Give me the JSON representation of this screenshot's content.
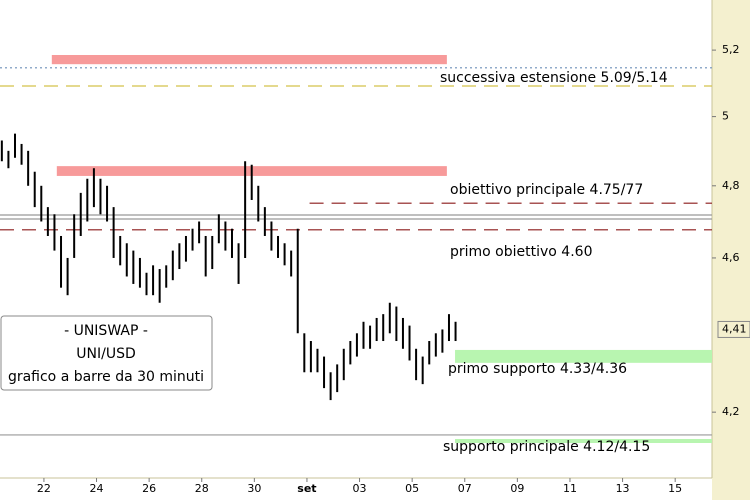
{
  "chart_data": {
    "type": "ohlc",
    "title": "- UNISWAP -",
    "subtitle": "UNI/USD",
    "description": "grafico a barre da 30 minuti",
    "log_scale": true,
    "bar_color": "#000000",
    "xlim": [
      -1.67,
      25.4
    ],
    "xticks": [
      {
        "value": 0,
        "label": "22"
      },
      {
        "value": 2,
        "label": "24"
      },
      {
        "value": 4,
        "label": "26"
      },
      {
        "value": 6,
        "label": "28"
      },
      {
        "value": 8,
        "label": "30"
      },
      {
        "value": 10,
        "label": "set"
      },
      {
        "value": 12,
        "label": "03"
      },
      {
        "value": 14,
        "label": "05"
      },
      {
        "value": 16,
        "label": "07"
      },
      {
        "value": 18,
        "label": "09"
      },
      {
        "value": 20,
        "label": "11"
      },
      {
        "value": 22,
        "label": "13"
      },
      {
        "value": 24,
        "label": "15"
      }
    ],
    "ylim": [
      4.04,
      5.356
    ],
    "yticks": [
      {
        "value": 5.2,
        "label": "5,2"
      },
      5,
      {
        "value": 4.8,
        "label": "4,8"
      },
      {
        "value": 4.6,
        "label": "4,6"
      },
      {
        "value": 4.2,
        "label": "4,2"
      }
    ],
    "last_price": {
      "value": 4.41,
      "label": "4,41"
    },
    "x": [
      -1.6,
      -1.35,
      -1.1,
      -0.85,
      -0.6,
      -0.35,
      -0.1,
      0.15,
      0.4,
      0.65,
      0.9,
      1.15,
      1.4,
      1.65,
      1.9,
      2.15,
      2.4,
      2.65,
      2.9,
      3.15,
      3.4,
      3.65,
      3.9,
      4.15,
      4.4,
      4.65,
      4.9,
      5.15,
      5.4,
      5.65,
      5.9,
      6.15,
      6.4,
      6.65,
      6.9,
      7.15,
      7.4,
      7.65,
      7.9,
      8.15,
      8.4,
      8.65,
      8.9,
      9.15,
      9.4,
      9.65,
      9.9,
      10.15,
      10.4,
      10.65,
      10.9,
      11.15,
      11.4,
      11.65,
      11.9,
      12.15,
      12.4,
      12.65,
      12.9,
      13.15,
      13.4,
      13.65,
      13.9,
      14.15,
      14.4,
      14.65,
      14.9,
      15.15,
      15.4,
      15.65
    ],
    "high": [
      4.93,
      4.9,
      4.95,
      4.92,
      4.9,
      4.84,
      4.8,
      4.74,
      4.72,
      4.66,
      4.6,
      4.72,
      4.78,
      4.82,
      4.85,
      4.82,
      4.8,
      4.74,
      4.66,
      4.64,
      4.62,
      4.6,
      4.56,
      4.58,
      4.57,
      4.58,
      4.62,
      4.64,
      4.66,
      4.68,
      4.7,
      4.66,
      4.66,
      4.72,
      4.7,
      4.68,
      4.64,
      4.87,
      4.86,
      4.8,
      4.74,
      4.7,
      4.66,
      4.64,
      4.62,
      4.68,
      4.4,
      4.38,
      4.36,
      4.34,
      4.3,
      4.32,
      4.36,
      4.38,
      4.4,
      4.43,
      4.42,
      4.44,
      4.45,
      4.48,
      4.47,
      4.44,
      4.42,
      4.36,
      4.34,
      4.38,
      4.4,
      4.41,
      4.45,
      4.43
    ],
    "low": [
      4.87,
      4.85,
      4.88,
      4.86,
      4.8,
      4.74,
      4.7,
      4.66,
      4.62,
      4.52,
      4.5,
      4.6,
      4.66,
      4.7,
      4.74,
      4.72,
      4.7,
      4.6,
      4.58,
      4.55,
      4.53,
      4.52,
      4.5,
      4.5,
      4.48,
      4.52,
      4.54,
      4.57,
      4.59,
      4.62,
      4.64,
      4.55,
      4.57,
      4.64,
      4.62,
      4.6,
      4.53,
      4.6,
      4.76,
      4.7,
      4.66,
      4.62,
      4.6,
      4.58,
      4.55,
      4.4,
      4.3,
      4.3,
      4.3,
      4.26,
      4.23,
      4.25,
      4.28,
      4.32,
      4.34,
      4.36,
      4.36,
      4.38,
      4.38,
      4.4,
      4.38,
      4.36,
      4.33,
      4.28,
      4.27,
      4.32,
      4.34,
      4.35,
      4.38,
      4.38
    ],
    "bands": [
      {
        "range": [
          5.157,
          5.185
        ],
        "xrange": [
          0.3,
          15.32
        ],
        "color": "#f79a9a"
      },
      {
        "range": [
          4.828,
          4.856
        ],
        "xrange": [
          0.49,
          15.32
        ],
        "color": "#f79a9a"
      },
      {
        "range": [
          4.324,
          4.357
        ],
        "xrange": [
          15.63,
          25.4
        ],
        "color": "#b8f5b0"
      }
    ],
    "levels": [
      {
        "value": 5.146,
        "from": -1.67,
        "color": "#6c8fb8",
        "dash": "2 3"
      },
      {
        "value": 5.091,
        "from": -1.67,
        "color": "#d4c24a",
        "dash": "14 8"
      },
      {
        "value": 4.751,
        "from": 10.1,
        "color": "#8b1a1a",
        "dash": "14 8"
      },
      {
        "value": 4.718,
        "from": -1.67,
        "color": "#999999",
        "dash": "none"
      },
      {
        "value": 4.707,
        "from": -1.67,
        "color": "#999999",
        "dash": "none"
      },
      {
        "value": 4.677,
        "from": -1.67,
        "color": "#8b1a1a",
        "dash": "14 8"
      },
      {
        "value": 4.144,
        "from": -1.67,
        "color": "#999999",
        "dash": "none"
      },
      {
        "value": 4.129,
        "from": 15.63,
        "color": "#b8f5b0",
        "dash": "none"
      }
    ],
    "annotations": [
      "successiva estensione 5.09/5.14",
      "obiettivo principale 4.75/77",
      "primo obiettivo 4.60",
      "primo supporto 4.33/4.36",
      "supporto principale 4.12/4.15"
    ]
  }
}
